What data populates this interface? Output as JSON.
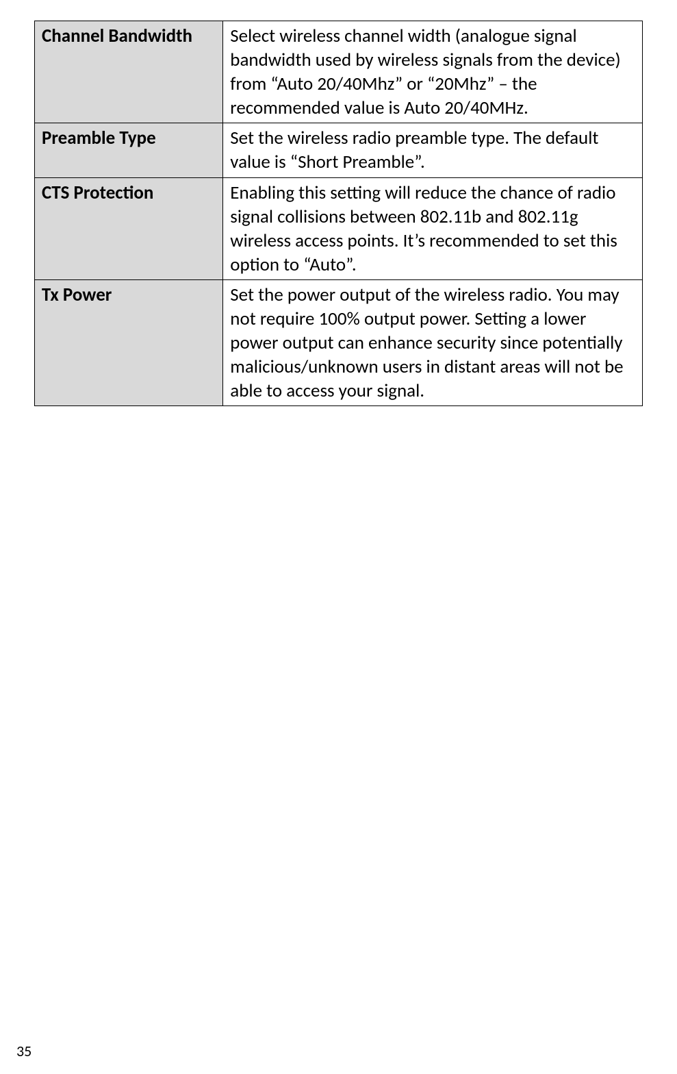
{
  "table": {
    "columns": [
      "label",
      "description"
    ],
    "label_bg_color": "#d9d9d9",
    "description_bg_color": "#ffffff",
    "border_color": "#000000",
    "font_family": "Calibri, Arial, sans-serif",
    "font_size": 27,
    "label_font_weight": "bold",
    "rows": [
      {
        "label": "Channel Bandwidth",
        "description": "Select wireless channel width (analogue signal bandwidth used by wireless signals from the device) from “Auto 20/40Mhz” or “20Mhz” – the recommended value is Auto 20/40MHz."
      },
      {
        "label": "Preamble Type",
        "description": "Set the wireless radio preamble type. The default value is “Short Preamble”."
      },
      {
        "label": "CTS Protection",
        "description": "Enabling this setting will reduce the chance of radio signal collisions between 802.11b and 802.11g wireless access points. It’s recommended to set this option to “Auto”."
      },
      {
        "label": "Tx Power",
        "description": "Set the power output of the wireless radio. You may not require 100% output power. Setting a lower power output can enhance security since potentially malicious/unknown users in distant areas will not be able to access your signal."
      }
    ]
  },
  "page_number": "35"
}
